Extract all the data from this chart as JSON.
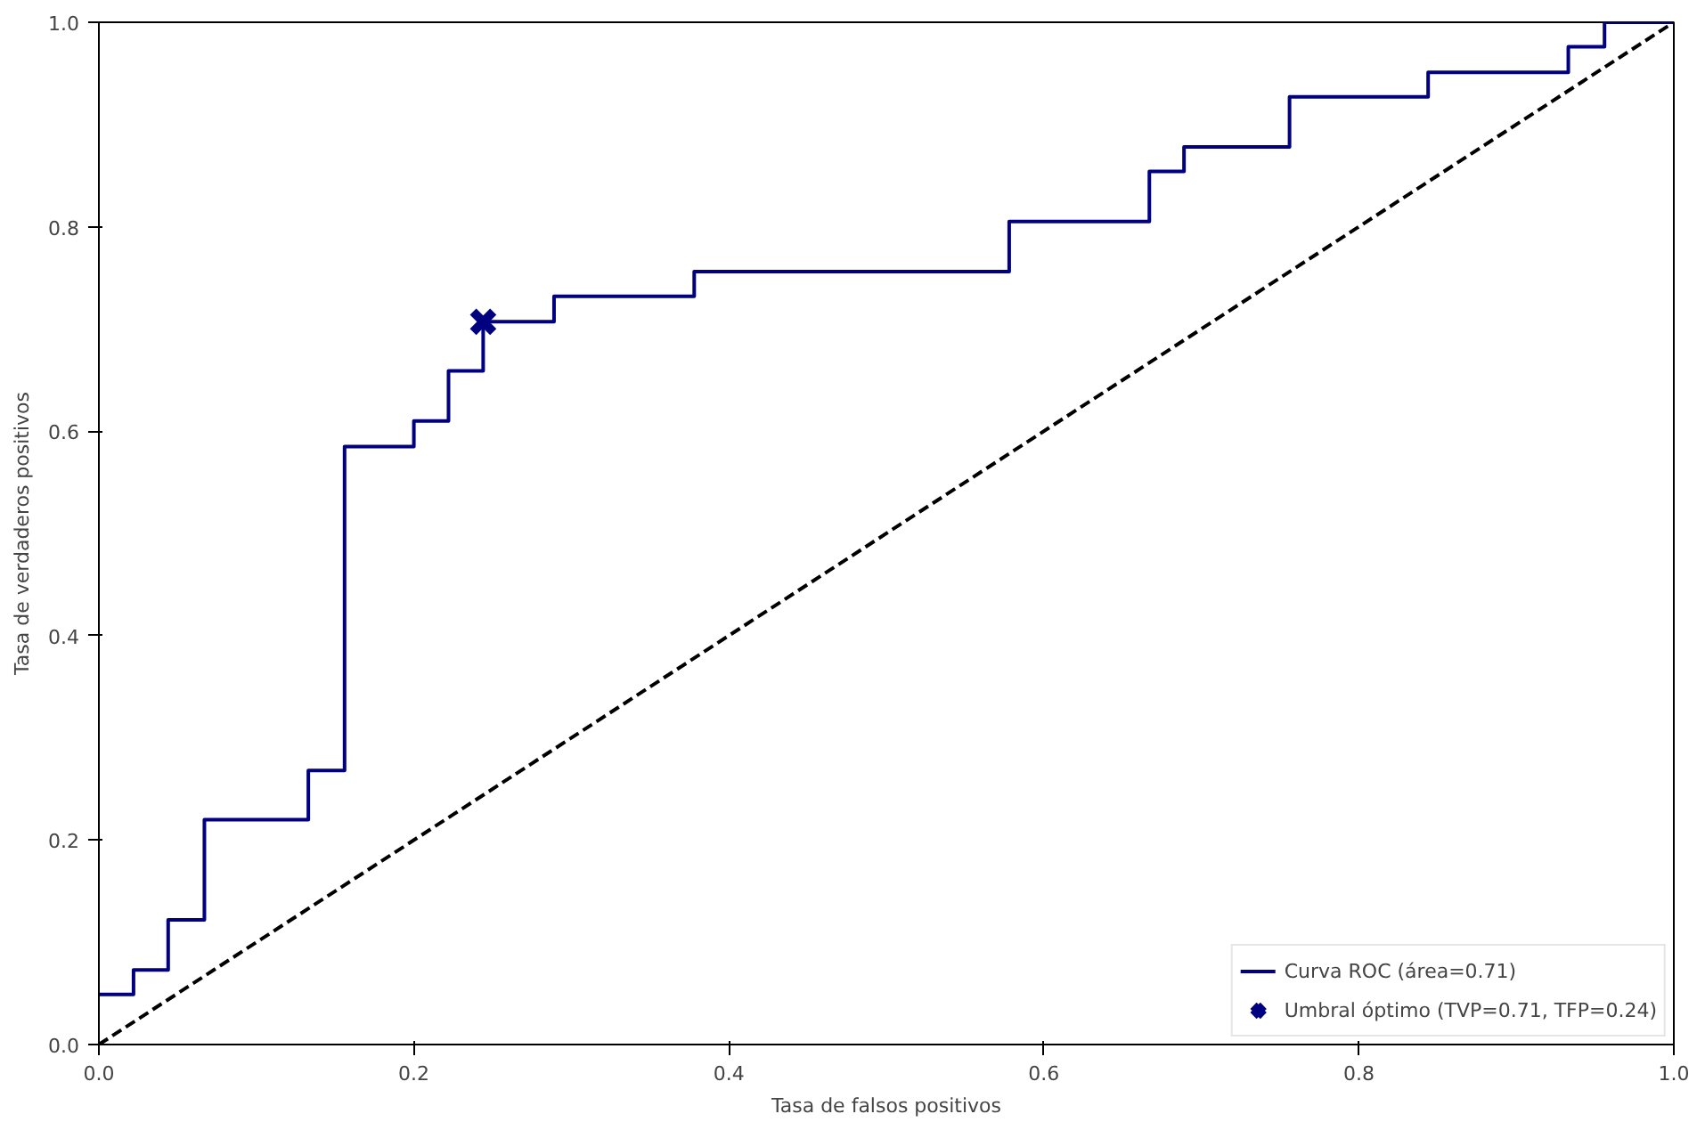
{
  "chart_data": {
    "type": "step",
    "xlabel": "Tasa de falsos positivos",
    "ylabel": "Tasa de verdaderos positivos",
    "series": [
      {
        "name": "Curva ROC (área=0.71)",
        "color": "#000080",
        "x": [
          0,
          0.022,
          0.044,
          0.067,
          0.133,
          0.156,
          0.2,
          0.222,
          0.244,
          0.289,
          0.378,
          0.578,
          0.667,
          0.689,
          0.756,
          0.844,
          0.933,
          0.956,
          1.0
        ],
        "values": [
          0.049,
          0.073,
          0.122,
          0.22,
          0.268,
          0.585,
          0.61,
          0.659,
          0.707,
          0.732,
          0.756,
          0.805,
          0.854,
          0.878,
          0.927,
          0.951,
          0.976,
          1.0,
          1.0
        ]
      },
      {
        "type": "line",
        "color": "#000000",
        "line_style": "dashed",
        "x": [
          0,
          1
        ],
        "values": [
          0,
          1
        ]
      },
      {
        "name": "Umbral óptimo (TVP=0.71, TFP=0.24)",
        "type": "scatter",
        "marker": "cross",
        "color": "#000080",
        "x": [
          0.244
        ],
        "values": [
          0.707
        ]
      }
    ],
    "xlim": [
      0,
      1
    ],
    "ylim": [
      0,
      1
    ],
    "xticks": [
      {
        "value": 0,
        "label": "0.0"
      },
      0.2,
      0.4,
      0.6,
      0.8,
      {
        "value": 1,
        "label": "1.0"
      }
    ],
    "yticks": [
      {
        "value": 0,
        "label": "0.0"
      },
      0.2,
      0.4,
      0.6,
      0.8,
      {
        "value": 1,
        "label": "1.0"
      }
    ],
    "grid": false,
    "legend": "bottom right"
  }
}
